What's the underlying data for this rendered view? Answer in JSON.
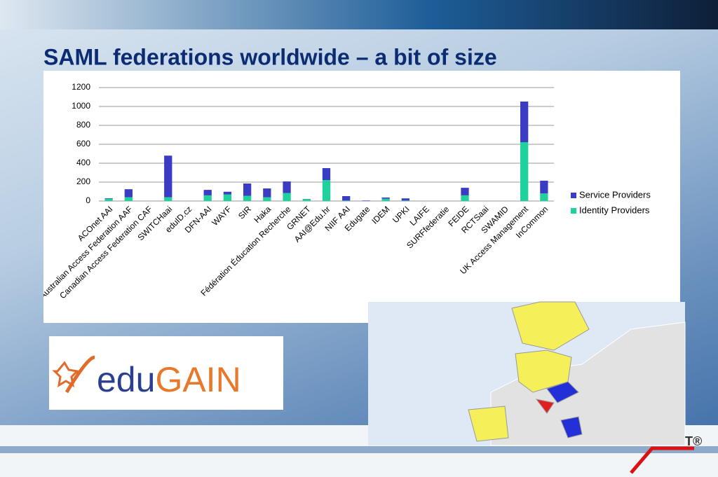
{
  "title": "SAML federations worldwide – a bit of size",
  "logo": {
    "prefix": "edu",
    "suffix": "GAIN"
  },
  "corner_mark": "T®",
  "chart_data": {
    "type": "stacked-bar",
    "categories": [
      "ACOnet AAI",
      "Australian Access Federation AAF",
      "Canadian Access Federation CAF",
      "SWITCHaai",
      "eduID.cz",
      "DFN-AAI",
      "WAYF",
      "SIR",
      "Haka",
      "Fédération Éducation Recherche",
      "GRNET",
      "AAI@Edu.hr",
      "NIIF AAI",
      "Edugate",
      "IDEM",
      "UPKI",
      "LAIFE",
      "SURFfederatie",
      "FEIDE",
      "RCTSaai",
      "SWAMID",
      "UK Access Management",
      "InCommon"
    ],
    "series": [
      {
        "name": "Service Providers",
        "color": "#3a3cc4",
        "values": [
          5,
          85,
          0,
          440,
          0,
          58,
          28,
          130,
          93,
          122,
          2,
          126,
          47,
          5,
          12,
          23,
          0,
          0,
          80,
          0,
          0,
          430,
          135
        ]
      },
      {
        "name": "Identity Providers",
        "color": "#1fd19c",
        "values": [
          25,
          40,
          0,
          40,
          0,
          60,
          70,
          55,
          40,
          85,
          20,
          222,
          5,
          0,
          25,
          5,
          0,
          0,
          60,
          0,
          0,
          622,
          80
        ]
      }
    ],
    "ylim": [
      0,
      1200
    ],
    "yticks": [
      0,
      200,
      400,
      600,
      800,
      1000,
      1200
    ],
    "grid": true,
    "legend": "right"
  }
}
